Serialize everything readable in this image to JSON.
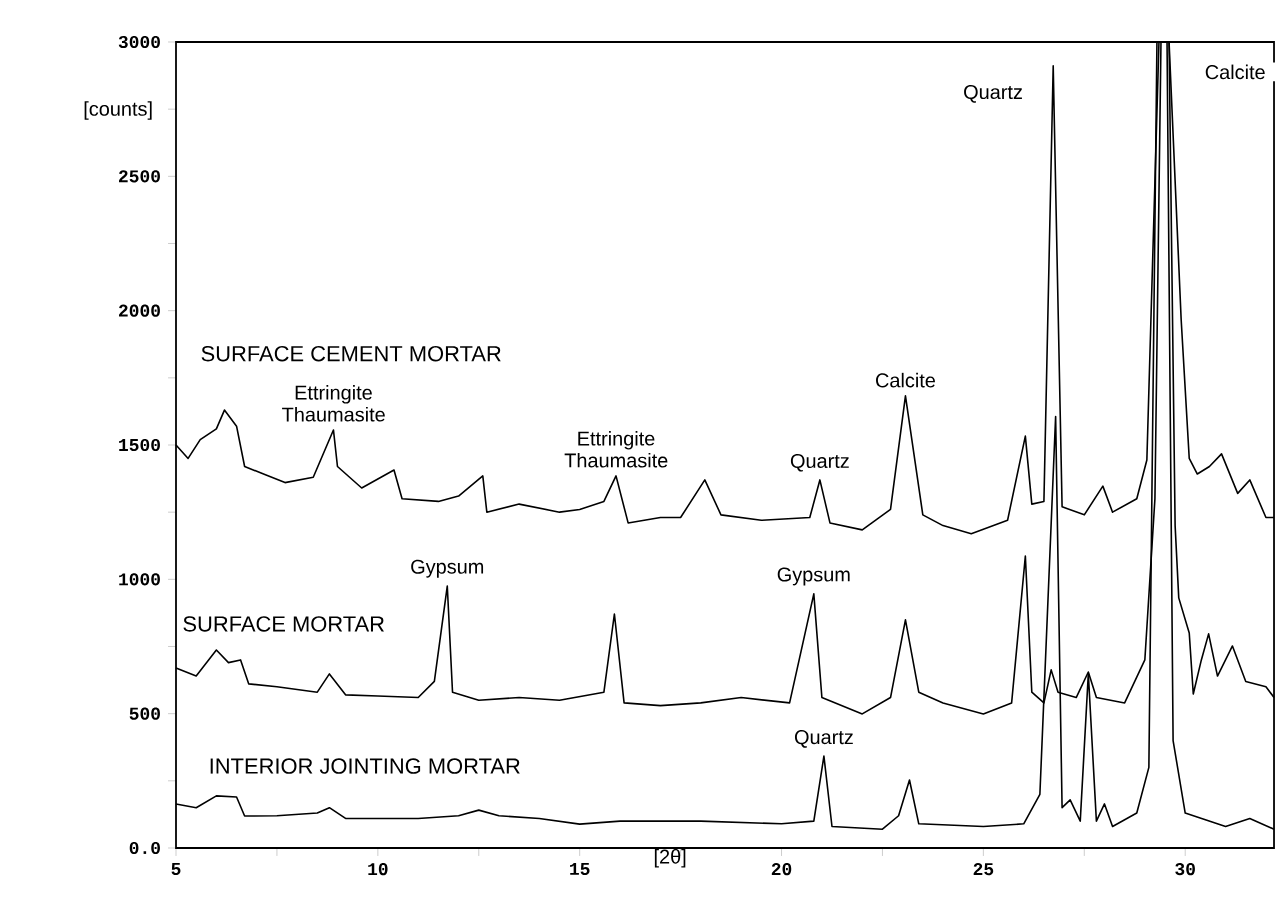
{
  "chart_data": {
    "type": "line",
    "xlabel": "[2θ]",
    "ylabel": "[counts]",
    "xlim": [
      5,
      32.2
    ],
    "ylim": [
      0,
      3000
    ],
    "xticks": [
      5,
      {
        "value": 7.5,
        "label": null
      },
      10,
      {
        "value": 12.5,
        "label": null
      },
      15,
      {
        "value": 17.5,
        "label": null
      },
      20,
      {
        "value": 22.5,
        "label": null
      },
      25,
      {
        "value": 27.5,
        "label": null
      },
      30
    ],
    "yticks": [
      {
        "value": 0,
        "label": "0.0"
      },
      {
        "value": 250,
        "label": null
      },
      500,
      {
        "value": 750,
        "label": null
      },
      1000,
      {
        "value": 1250,
        "label": null
      },
      1500,
      {
        "value": 1750,
        "label": null
      },
      2000,
      {
        "value": 2250,
        "label": null
      },
      2500,
      {
        "value": 2750,
        "label": null
      },
      3000
    ],
    "grid": false,
    "legend": false,
    "marker": "none",
    "line_style": "solid",
    "series": [
      {
        "name": "SURFACE CEMENT MORTAR",
        "color": "#000000",
        "x": [
          5.0,
          5.3,
          5.6,
          6.0,
          6.2,
          6.5,
          6.7,
          7.2,
          7.7,
          8.4,
          8.9,
          9.0,
          9.6,
          10.4,
          10.6,
          11.5,
          12.0,
          12.6,
          12.7,
          13.5,
          14.5,
          15.0,
          15.6,
          15.9,
          16.2,
          17.0,
          17.5,
          18.1,
          18.5,
          19.5,
          20.7,
          20.95,
          21.2,
          22.0,
          22.7,
          23.07,
          23.5,
          24.0,
          24.7,
          25.6,
          26.04,
          26.2,
          26.5,
          26.73,
          26.95,
          27.5,
          27.96,
          28.2,
          28.8,
          29.05,
          29.35,
          29.6,
          29.9,
          30.1,
          30.3,
          30.6,
          30.9,
          31.3,
          31.6,
          32.0,
          32.2
        ],
        "values": [
          1500,
          1450,
          1520,
          1560,
          1630,
          1570,
          1420,
          1390,
          1360,
          1380,
          1556,
          1420,
          1340,
          1407,
          1300,
          1290,
          1310,
          1385,
          1250,
          1280,
          1250,
          1260,
          1290,
          1385,
          1210,
          1230,
          1230,
          1370,
          1240,
          1220,
          1230,
          1370,
          1210,
          1184,
          1260,
          1683,
          1240,
          1200,
          1170,
          1220,
          1533,
          1280,
          1290,
          2911,
          1270,
          1240,
          1347,
          1250,
          1300,
          1444,
          3000,
          3000,
          1966,
          1450,
          1392,
          1420,
          1467,
          1320,
          1370,
          1230,
          1230
        ]
      },
      {
        "name": "SURFACE MORTAR",
        "color": "#000000",
        "x": [
          5.0,
          5.5,
          6.0,
          6.3,
          6.6,
          6.8,
          7.5,
          8.5,
          8.8,
          9.2,
          10.0,
          11.0,
          11.4,
          11.72,
          11.85,
          12.5,
          13.5,
          14.5,
          15.6,
          15.86,
          16.1,
          17.0,
          18.0,
          19.0,
          20.2,
          20.8,
          21.0,
          22.0,
          22.7,
          23.07,
          23.4,
          24.0,
          25.0,
          25.7,
          26.04,
          26.2,
          26.5,
          26.68,
          26.85,
          27.3,
          27.6,
          27.8,
          28.5,
          29.0,
          29.25,
          29.4,
          29.6,
          29.75,
          29.84,
          30.1,
          30.2,
          30.4,
          30.58,
          30.8,
          31.17,
          31.5,
          32.0,
          32.2
        ],
        "values": [
          670,
          640,
          737,
          690,
          700,
          611,
          600,
          580,
          648,
          570,
          566,
          560,
          620,
          975,
          580,
          550,
          560,
          550,
          580,
          871,
          540,
          530,
          540,
          560,
          540,
          946,
          560,
          499,
          560,
          849,
          580,
          540,
          499,
          540,
          1087,
          580,
          540,
          663,
          580,
          560,
          655,
          560,
          540,
          700,
          1300,
          3000,
          3000,
          1200,
          931,
          800,
          573,
          700,
          797,
          640,
          752,
          620,
          600,
          560
        ]
      },
      {
        "name": "INTERIOR JOINTING MORTAR",
        "color": "#000000",
        "x": [
          5.0,
          5.5,
          6.0,
          6.5,
          6.7,
          7.5,
          8.5,
          8.8,
          9.2,
          10.0,
          11.0,
          12.0,
          12.5,
          13.0,
          14.0,
          15.0,
          16.0,
          17.0,
          18.0,
          20.0,
          20.8,
          21.05,
          21.25,
          22.5,
          22.9,
          23.17,
          23.4,
          25.0,
          26.0,
          26.4,
          26.79,
          26.95,
          27.15,
          27.4,
          27.6,
          27.8,
          28.0,
          28.2,
          28.8,
          29.1,
          29.3,
          29.55,
          29.7,
          30.0,
          31.0,
          31.6,
          32.2
        ],
        "values": [
          164,
          150,
          194,
          190,
          119,
          120,
          130,
          150,
          110,
          110,
          110,
          120,
          141,
          120,
          110,
          89,
          100,
          100,
          100,
          90,
          100,
          342,
          80,
          70,
          120,
          253,
          90,
          80,
          90,
          200,
          1606,
          150,
          179,
          100,
          648,
          100,
          164,
          80,
          130,
          300,
          3000,
          3000,
          400,
          130,
          80,
          110,
          70
        ]
      }
    ],
    "annotations": [
      {
        "text": "Ettringite Thaumasite",
        "x": 8.9,
        "y": 1556
      },
      {
        "text": "Ettringite Thaumasite",
        "x": 15.9,
        "y": 1385
      },
      {
        "text": "Quartz",
        "x": 20.95,
        "y": 1370
      },
      {
        "text": "Calcite",
        "x": 23.07,
        "y": 1683
      },
      {
        "text": "Quartz",
        "x": 26.73,
        "y": 2911
      },
      {
        "text": "Calcite",
        "x": 29.6,
        "y": 3000
      },
      {
        "text": "Gypsum",
        "x": 11.72,
        "y": 975
      },
      {
        "text": "Gypsum",
        "x": 20.8,
        "y": 946
      },
      {
        "text": "Quartz",
        "x": 21.05,
        "y": 342
      }
    ]
  }
}
